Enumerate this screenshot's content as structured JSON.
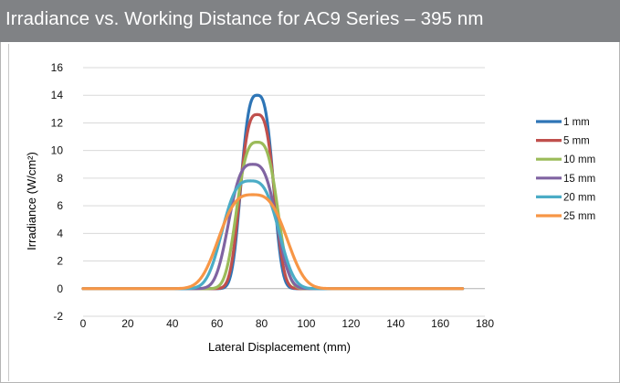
{
  "header": {
    "title": "Irradiance vs. Working Distance for AC9 Series – 395 nm"
  },
  "chart_data": {
    "type": "line",
    "title": "Irradiance vs. Working Distance for AC9 Series – 395 nm",
    "xlabel": "Lateral Displacement (mm)",
    "ylabel": "Irradiance (W/cm²)",
    "xlim": [
      0,
      180
    ],
    "ylim": [
      -2,
      16
    ],
    "x_ticks": [
      "0",
      "20",
      "40",
      "60",
      "80",
      "100",
      "120",
      "140",
      "160",
      "180"
    ],
    "y_ticks": [
      "-2",
      "0",
      "2",
      "4",
      "6",
      "8",
      "10",
      "12",
      "14",
      "16"
    ],
    "grid": true,
    "legend_position": "right",
    "series": [
      {
        "name": "1 mm",
        "color": "#2e75b6",
        "peak_x": 78,
        "peak": 14.0,
        "sigma": 6.8,
        "shape": 3,
        "values": [
          [
            0,
            0
          ],
          [
            40,
            0
          ],
          [
            55,
            0
          ],
          [
            60,
            0.4
          ],
          [
            65,
            2.6
          ],
          [
            70,
            7.3
          ],
          [
            75,
            12.8
          ],
          [
            78,
            14.0
          ],
          [
            81,
            12.8
          ],
          [
            86,
            7.3
          ],
          [
            91,
            2.6
          ],
          [
            96,
            0.4
          ],
          [
            100,
            0
          ],
          [
            170,
            0
          ]
        ]
      },
      {
        "name": "5 mm",
        "color": "#c0504d",
        "peak_x": 78,
        "peak": 12.6,
        "sigma": 7.3,
        "shape": 3,
        "values": [
          [
            0,
            0
          ],
          [
            40,
            0
          ],
          [
            55,
            0.1
          ],
          [
            60,
            0.7
          ],
          [
            65,
            3.2
          ],
          [
            70,
            7.6
          ],
          [
            75,
            11.8
          ],
          [
            78,
            12.6
          ],
          [
            81,
            11.8
          ],
          [
            86,
            7.6
          ],
          [
            91,
            3.2
          ],
          [
            96,
            0.7
          ],
          [
            100,
            0.1
          ],
          [
            170,
            0
          ]
        ]
      },
      {
        "name": "10 mm",
        "color": "#9bbb59",
        "peak_x": 78,
        "peak": 10.6,
        "sigma": 8.6,
        "shape": 3,
        "values": [
          [
            0,
            0
          ],
          [
            40,
            0
          ],
          [
            55,
            0.3
          ],
          [
            60,
            1.2
          ],
          [
            65,
            3.8
          ],
          [
            70,
            7.3
          ],
          [
            75,
            10.0
          ],
          [
            78,
            10.6
          ],
          [
            81,
            10.0
          ],
          [
            86,
            7.3
          ],
          [
            91,
            3.8
          ],
          [
            96,
            1.2
          ],
          [
            101,
            0.3
          ],
          [
            170,
            0
          ]
        ]
      },
      {
        "name": "15 mm",
        "color": "#8064a2",
        "peak_x": 76,
        "peak": 9.0,
        "sigma": 10.0,
        "shape": 3,
        "values": [
          [
            0,
            0
          ],
          [
            40,
            0
          ],
          [
            50,
            0.2
          ],
          [
            55,
            0.7
          ],
          [
            60,
            2.0
          ],
          [
            65,
            4.5
          ],
          [
            70,
            7.4
          ],
          [
            76,
            9.0
          ],
          [
            82,
            7.4
          ],
          [
            87,
            4.5
          ],
          [
            92,
            2.0
          ],
          [
            97,
            0.7
          ],
          [
            102,
            0.2
          ],
          [
            170,
            0
          ]
        ]
      },
      {
        "name": "20 mm",
        "color": "#4bacc6",
        "peak_x": 75,
        "peak": 7.8,
        "sigma": 11.8,
        "shape": 3,
        "values": [
          [
            0,
            0
          ],
          [
            40,
            0.1
          ],
          [
            50,
            0.5
          ],
          [
            55,
            1.3
          ],
          [
            60,
            2.8
          ],
          [
            65,
            4.8
          ],
          [
            70,
            6.8
          ],
          [
            75,
            7.8
          ],
          [
            80,
            6.8
          ],
          [
            85,
            4.8
          ],
          [
            90,
            2.8
          ],
          [
            95,
            1.3
          ],
          [
            100,
            0.5
          ],
          [
            170,
            0
          ]
        ]
      },
      {
        "name": "25 mm",
        "color": "#f79646",
        "peak_x": 76,
        "peak": 6.8,
        "sigma": 14.2,
        "shape": 3,
        "values": [
          [
            0,
            0
          ],
          [
            40,
            0.2
          ],
          [
            50,
            0.9
          ],
          [
            55,
            1.8
          ],
          [
            60,
            3.1
          ],
          [
            65,
            4.6
          ],
          [
            70,
            6.0
          ],
          [
            76,
            6.8
          ],
          [
            82,
            6.0
          ],
          [
            87,
            4.6
          ],
          [
            92,
            3.1
          ],
          [
            97,
            1.8
          ],
          [
            102,
            0.9
          ],
          [
            110,
            0.2
          ],
          [
            170,
            0
          ]
        ]
      }
    ]
  }
}
